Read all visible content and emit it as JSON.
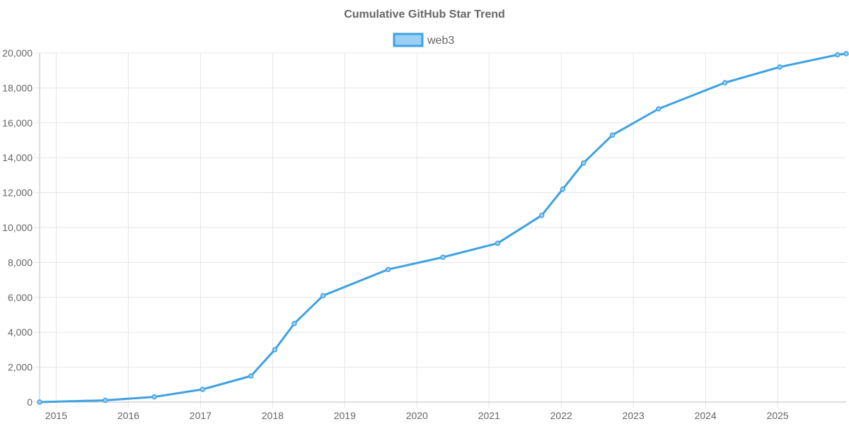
{
  "chart_data": {
    "type": "line",
    "title": "Cumulative GitHub Star Trend",
    "xlabel": "",
    "ylabel": "",
    "grid": true,
    "legend_position": "top",
    "x_ticks": [
      "2015",
      "2016",
      "2017",
      "2018",
      "2019",
      "2020",
      "2021",
      "2022",
      "2023",
      "2024",
      "2025"
    ],
    "y_ticks": [
      "0",
      "2,000",
      "4,000",
      "6,000",
      "8,000",
      "10,000",
      "12,000",
      "14,000",
      "16,000",
      "18,000",
      "20,000"
    ],
    "xlim": [
      2014.77,
      2025.95
    ],
    "ylim": [
      0,
      20000
    ],
    "series": [
      {
        "name": "web3",
        "color": "#3fa2e0",
        "fill": "#9ad0f5",
        "x": [
          2014.77,
          2015.68,
          2016.36,
          2017.03,
          2017.7,
          2018.03,
          2018.3,
          2018.7,
          2019.6,
          2020.36,
          2021.12,
          2021.73,
          2022.02,
          2022.31,
          2022.71,
          2023.35,
          2024.27,
          2025.03,
          2025.83,
          2025.95
        ],
        "values": [
          0,
          100,
          300,
          730,
          1500,
          3000,
          4500,
          6100,
          7600,
          8300,
          9100,
          10700,
          12200,
          13700,
          15300,
          16800,
          18300,
          19200,
          19900,
          19960
        ]
      }
    ]
  }
}
